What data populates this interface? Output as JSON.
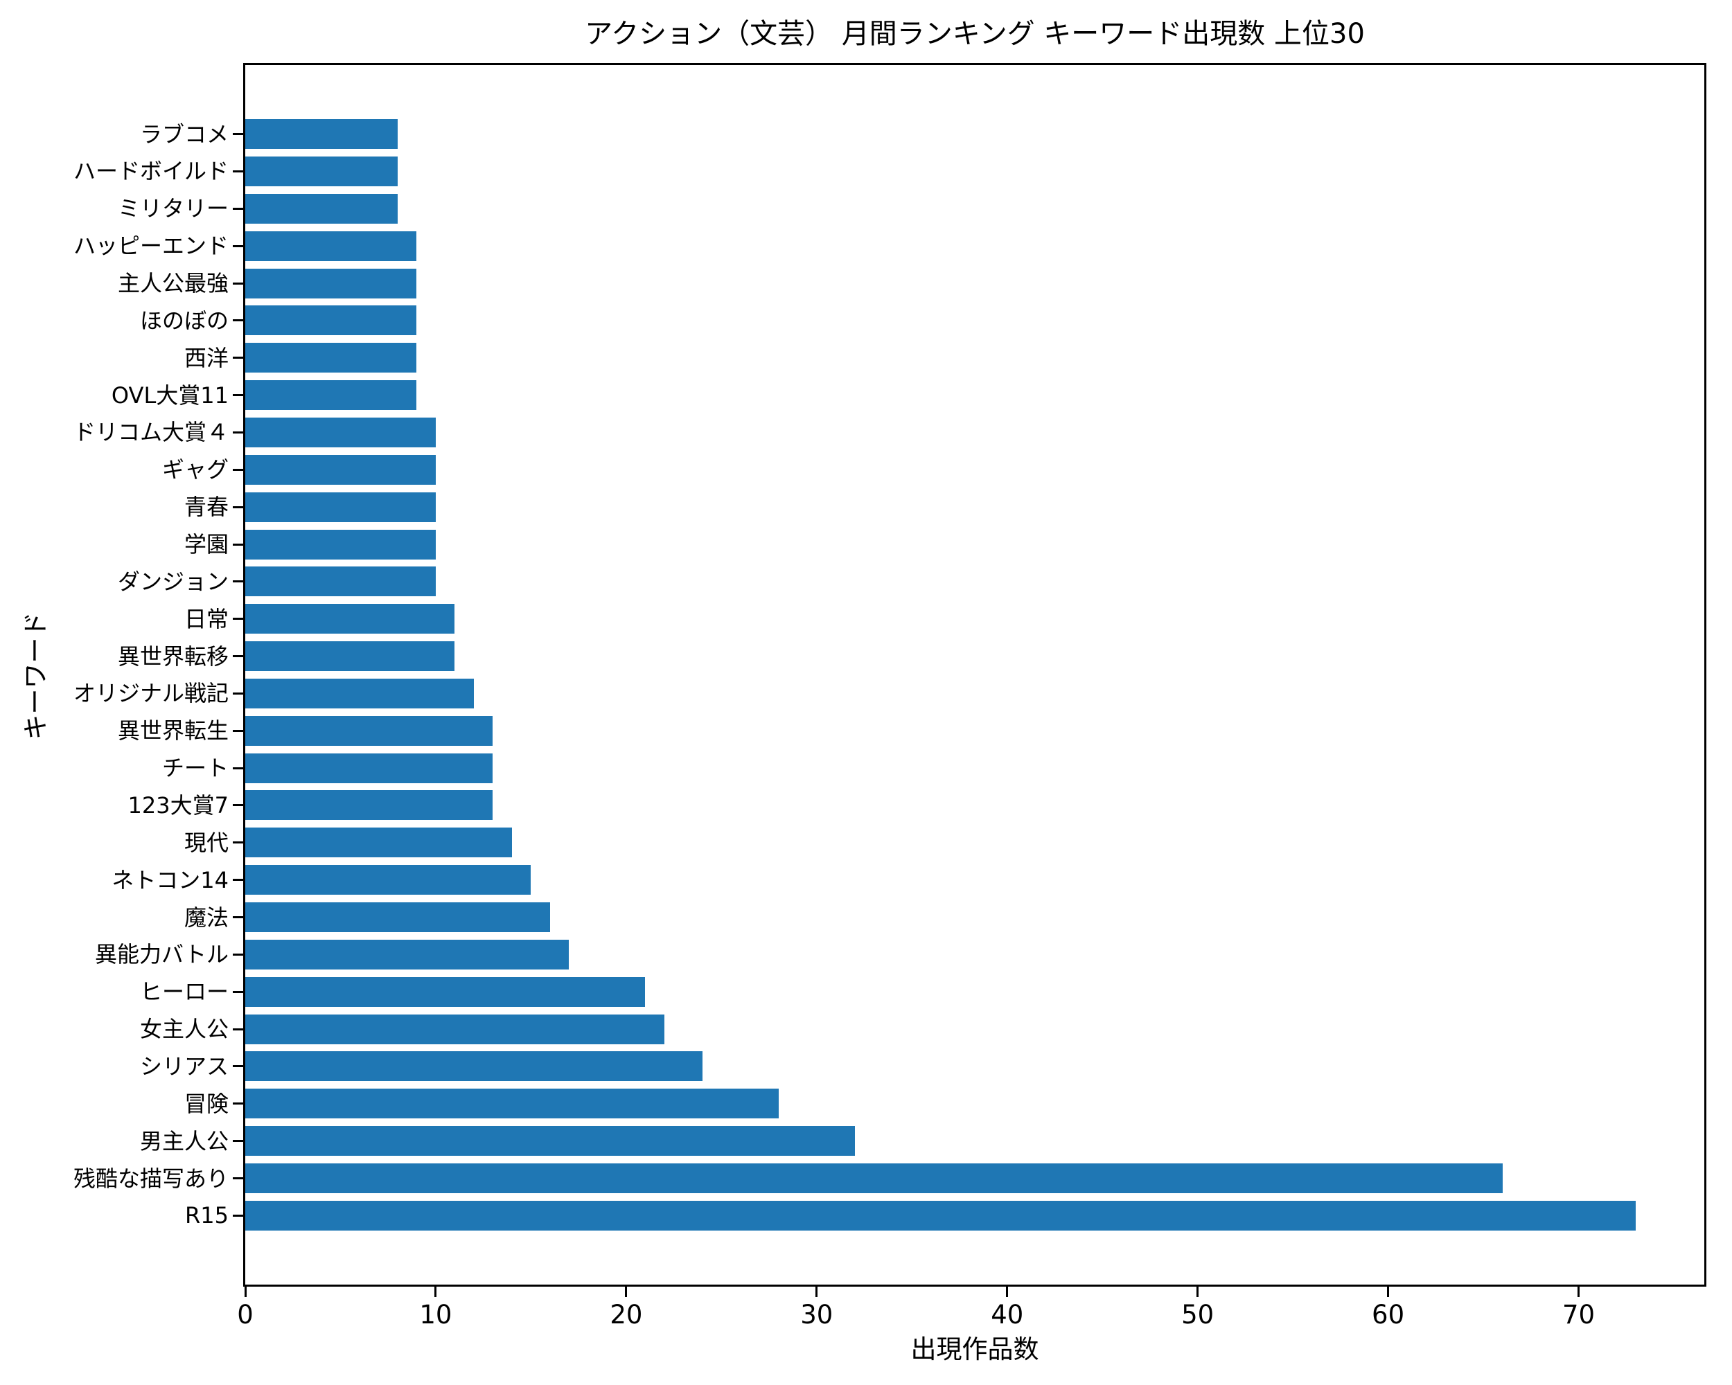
{
  "chart_data": {
    "type": "bar",
    "orientation": "horizontal",
    "title": "アクション（文芸） 月間ランキング キーワード出現数 上位30",
    "xlabel": "出現作品数",
    "ylabel": "キーワード",
    "category_order": "top_to_bottom",
    "categories": [
      "ラブコメ",
      "ハードボイルド",
      "ミリタリー",
      "ハッピーエンド",
      "主人公最強",
      "ほのぼの",
      "西洋",
      "OVL大賞11",
      "ドリコム大賞４",
      "ギャグ",
      "青春",
      "学園",
      "ダンジョン",
      "日常",
      "異世界転移",
      "オリジナル戦記",
      "異世界転生",
      "チート",
      "123大賞7",
      "現代",
      "ネトコン14",
      "魔法",
      "異能力バトル",
      "ヒーロー",
      "女主人公",
      "シリアス",
      "冒険",
      "男主人公",
      "残酷な描写あり",
      "R15"
    ],
    "values": [
      8,
      8,
      8,
      9,
      9,
      9,
      9,
      9,
      10,
      10,
      10,
      10,
      10,
      11,
      11,
      12,
      13,
      13,
      13,
      14,
      15,
      16,
      17,
      21,
      22,
      24,
      28,
      32,
      66,
      73
    ],
    "xticks": [
      0,
      10,
      20,
      30,
      40,
      50,
      60,
      70
    ],
    "xlim": [
      0,
      76.6
    ],
    "grid": false,
    "legend": false,
    "bar_color": "#1f77b4",
    "axis_color": "#000000",
    "background_color": "#ffffff"
  }
}
